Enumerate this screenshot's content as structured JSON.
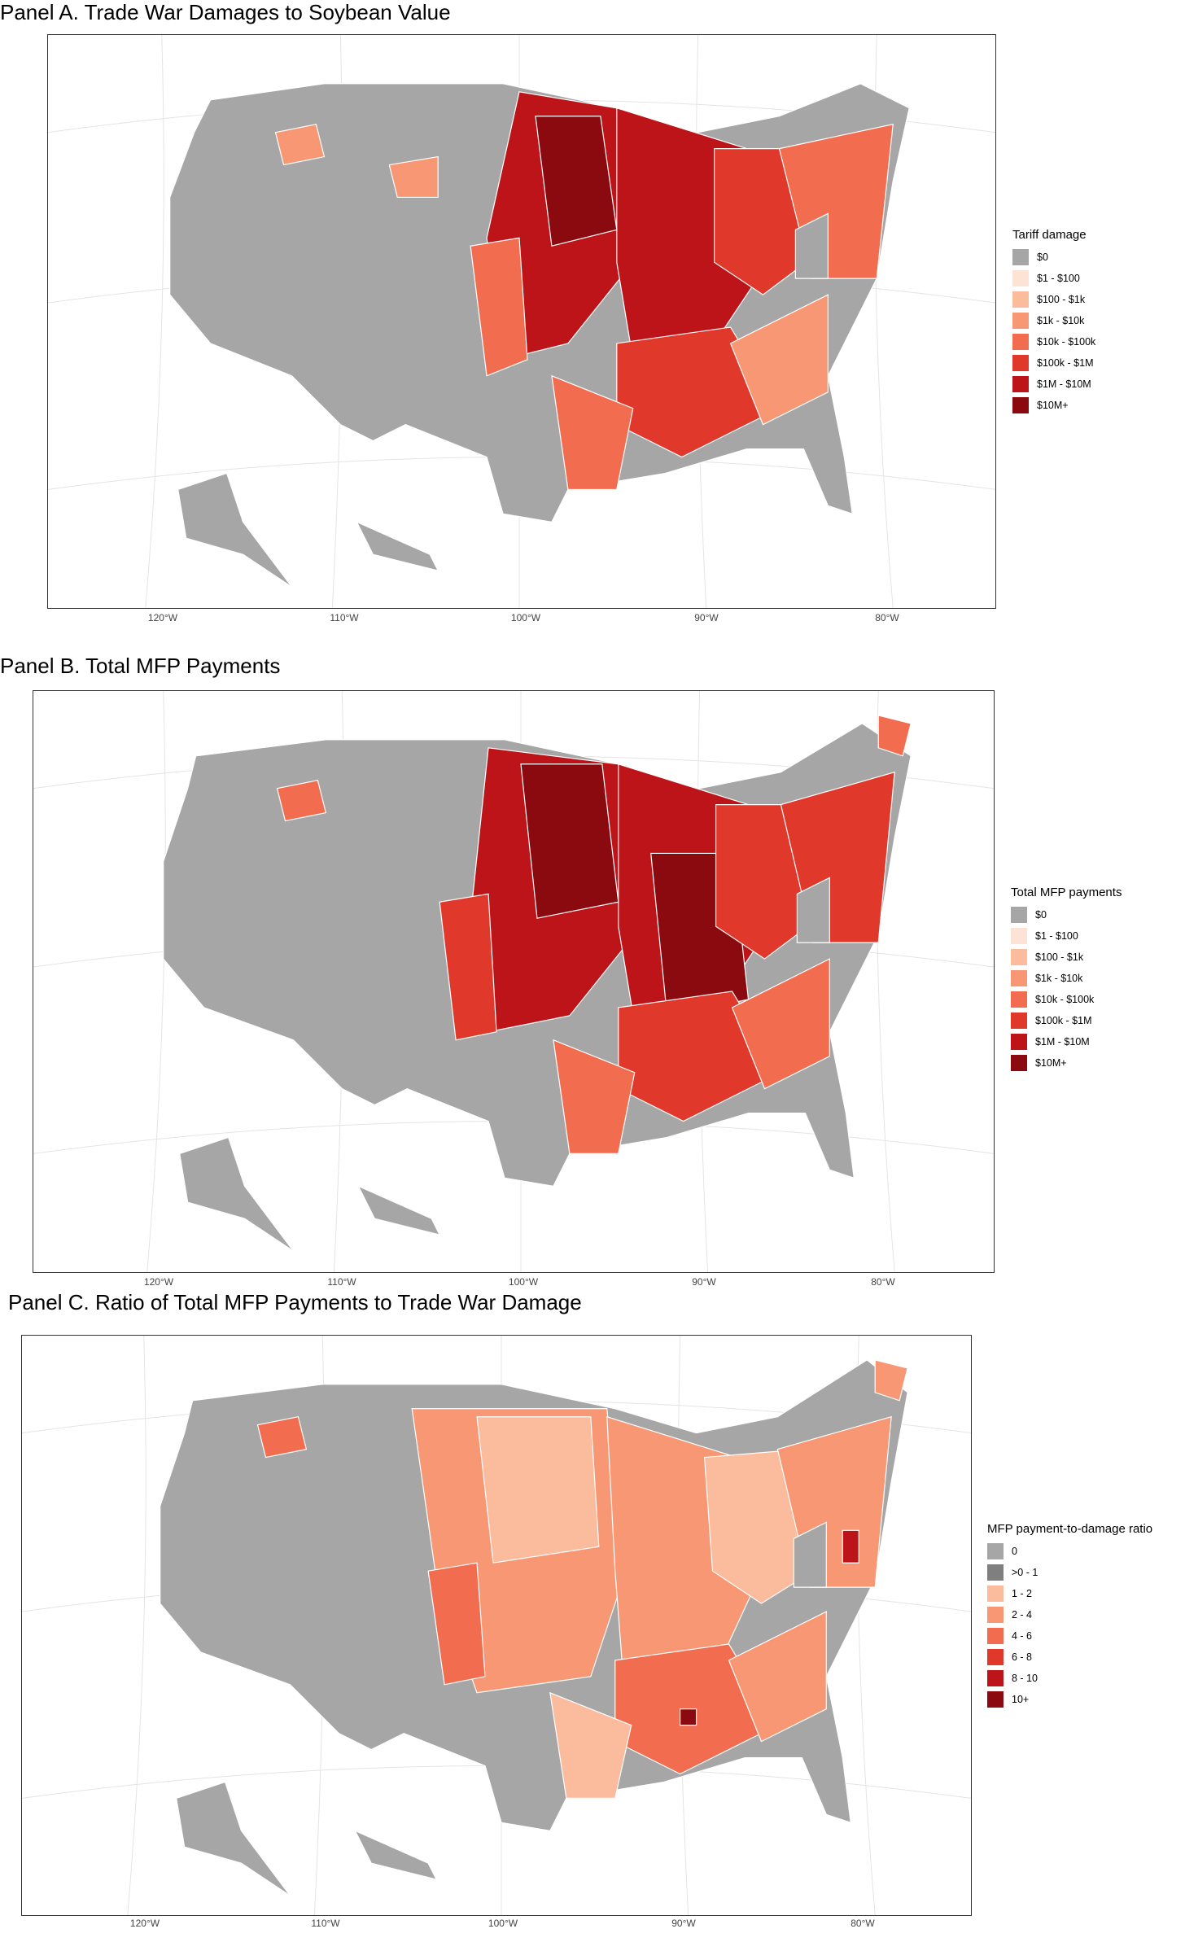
{
  "panels": [
    {
      "title": "Panel A. Trade War Damages to Soybean Value",
      "axis_ticks": [
        "120°W",
        "110°W",
        "100°W",
        "90°W",
        "80°W"
      ],
      "legend": {
        "title": "Tariff damage",
        "items": [
          {
            "label": "$0",
            "color": "#a6a6a6"
          },
          {
            "label": "$1 - $100",
            "color": "#fde3d6"
          },
          {
            "label": "$100 - $1k",
            "color": "#fbbb9d"
          },
          {
            "label": "$1k - $10k",
            "color": "#f79774"
          },
          {
            "label": "$10k - $100k",
            "color": "#f26d4f"
          },
          {
            "label": "$100k - $1M",
            "color": "#e0382b"
          },
          {
            "label": "$1M - $10M",
            "color": "#bd1419"
          },
          {
            "label": "$10M+",
            "color": "#8b0a0f"
          }
        ]
      }
    },
    {
      "title": "Panel B. Total MFP Payments",
      "axis_ticks": [
        "120°W",
        "110°W",
        "100°W",
        "90°W",
        "80°W"
      ],
      "legend": {
        "title": "Total MFP payments",
        "items": [
          {
            "label": "$0",
            "color": "#a6a6a6"
          },
          {
            "label": "$1 - $100",
            "color": "#fde3d6"
          },
          {
            "label": "$100 - $1k",
            "color": "#fbbb9d"
          },
          {
            "label": "$1k - $10k",
            "color": "#f79774"
          },
          {
            "label": "$10k - $100k",
            "color": "#f26d4f"
          },
          {
            "label": "$100k - $1M",
            "color": "#e0382b"
          },
          {
            "label": "$1M - $10M",
            "color": "#bd1419"
          },
          {
            "label": "$10M+",
            "color": "#8b0a0f"
          }
        ]
      }
    },
    {
      "title": "Panel C. Ratio of Total MFP Payments to Trade War Damage",
      "axis_ticks": [
        "120°W",
        "110°W",
        "100°W",
        "90°W",
        "80°W"
      ],
      "legend": {
        "title": "MFP payment-to-damage ratio",
        "items": [
          {
            "label": "0",
            "color": "#a6a6a6"
          },
          {
            "label": ">0 - 1",
            "color": "#7f7f7f"
          },
          {
            "label": "1 - 2",
            "color": "#fbbb9d"
          },
          {
            "label": "2 - 4",
            "color": "#f79774"
          },
          {
            "label": "4 - 6",
            "color": "#f26d4f"
          },
          {
            "label": "6 - 8",
            "color": "#e0382b"
          },
          {
            "label": "8 - 10",
            "color": "#bd1419"
          },
          {
            "label": "10+",
            "color": "#8b0a0f"
          }
        ]
      }
    }
  ]
}
